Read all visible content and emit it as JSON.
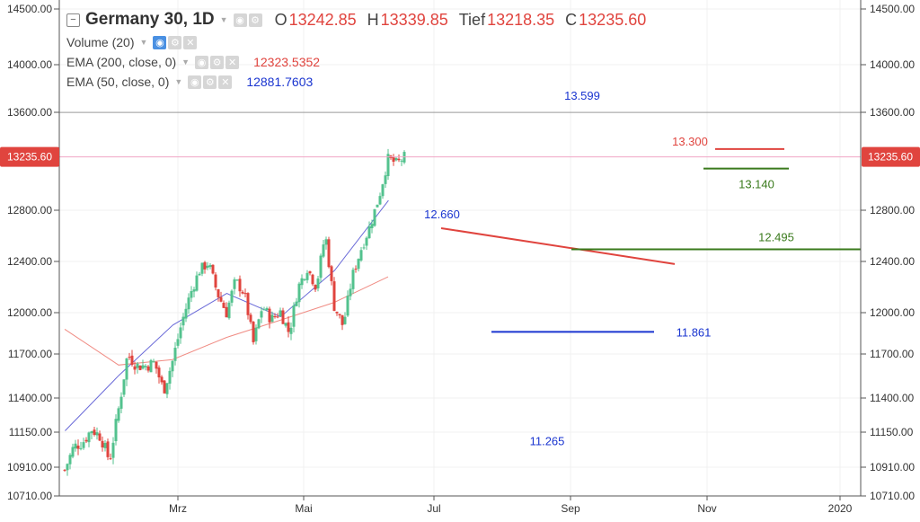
{
  "header": {
    "symbol": "Germany 30, 1D",
    "open_label": "O",
    "open": "13242.85",
    "high_label": "H",
    "high": "13339.85",
    "low_label": "Tief",
    "low": "13218.35",
    "close_label": "C",
    "close": "13235.60",
    "collapse_icon": "minus-icon"
  },
  "studies": [
    {
      "name": "Volume (20)",
      "value": ""
    },
    {
      "name": "EMA (200, close, 0)",
      "value": "12323.5352",
      "color": "#e0443e"
    },
    {
      "name": "EMA (50, close, 0)",
      "value": "12881.7603",
      "color": "#1a35d0"
    }
  ],
  "price_badge": "13235.60",
  "colors": {
    "up": "#53c28e",
    "down": "#e0443e",
    "ema200": "#f08c84",
    "ema50": "#6a6ad8",
    "resistance": "#e0443e",
    "support_blue": "#1a35d0",
    "support_green": "#3a7a1c",
    "badge": "#e0443e",
    "grid": "#f0f0f0"
  },
  "chart_data": {
    "type": "candlestick",
    "symbol": "Germany 30",
    "timeframe": "1D",
    "y_ticks": [
      10710,
      10910,
      11150,
      11400,
      11700,
      12000,
      12400,
      12800,
      13600,
      14000,
      14500
    ],
    "y_tick_labels": [
      "10710.00",
      "10910.00",
      "11150.00",
      "11400.00",
      "11700.00",
      "12000.00",
      "12400.00",
      "12800.00",
      "13600.00",
      "14000.00",
      "14500.00"
    ],
    "x_tick_labels": [
      "Mrz",
      "Mai",
      "Jul",
      "Sep",
      "Nov",
      "2020"
    ],
    "last_price": 13235.6,
    "annotations": [
      {
        "label": "13.599",
        "color": "#1a35d0",
        "value": 13599
      },
      {
        "label": "13.300",
        "color": "#e0443e",
        "value": 13300
      },
      {
        "label": "13.140",
        "color": "#3a7a1c",
        "value": 13140
      },
      {
        "label": "12.660",
        "color": "#1a35d0",
        "value": 12660
      },
      {
        "label": "12.495",
        "color": "#3a7a1c",
        "value": 12495
      },
      {
        "label": "11.861",
        "color": "#1a35d0",
        "value": 11861
      },
      {
        "label": "11.265",
        "color": "#1a35d0",
        "value": 11265
      }
    ],
    "ema200_path": [
      [
        12052,
        11880
      ],
      [
        12352,
        11625
      ],
      [
        12652,
        11662
      ],
      [
        12952,
        11820
      ],
      [
        13252,
        11945
      ],
      [
        13552,
        12080
      ],
      [
        13852,
        12280
      ]
    ],
    "ema50_path": [
      [
        12054,
        11160
      ],
      [
        12354,
        11555
      ],
      [
        12654,
        11910
      ],
      [
        12954,
        12150
      ],
      [
        13254,
        11970
      ],
      [
        13554,
        12330
      ],
      [
        13854,
        12880
      ]
    ],
    "close_path": [
      [
        12052,
        10890
      ],
      [
        12102,
        11050
      ],
      [
        12152,
        11080
      ],
      [
        12202,
        11170
      ],
      [
        12252,
        11120
      ],
      [
        12302,
        10950
      ],
      [
        12352,
        11320
      ],
      [
        12402,
        11700
      ],
      [
        12452,
        11620
      ],
      [
        12502,
        11620
      ],
      [
        12552,
        11640
      ],
      [
        12602,
        11450
      ],
      [
        12652,
        11650
      ],
      [
        12702,
        11920
      ],
      [
        12752,
        12150
      ],
      [
        12802,
        12330
      ],
      [
        12852,
        12390
      ],
      [
        12902,
        12150
      ],
      [
        12952,
        12000
      ],
      [
        13002,
        12250
      ],
      [
        13052,
        12150
      ],
      [
        13102,
        11780
      ],
      [
        13152,
        12050
      ],
      [
        13202,
        11950
      ],
      [
        13252,
        12010
      ],
      [
        13302,
        11850
      ],
      [
        13352,
        12200
      ],
      [
        13402,
        12350
      ],
      [
        13452,
        12200
      ],
      [
        13502,
        12620
      ],
      [
        13552,
        12050
      ],
      [
        13602,
        11900
      ],
      [
        13652,
        12280
      ],
      [
        13702,
        12500
      ],
      [
        13752,
        12680
      ],
      [
        13802,
        12910
      ],
      [
        13852,
        13220
      ],
      [
        13902,
        13180
      ],
      [
        13952,
        13250
      ]
    ]
  }
}
